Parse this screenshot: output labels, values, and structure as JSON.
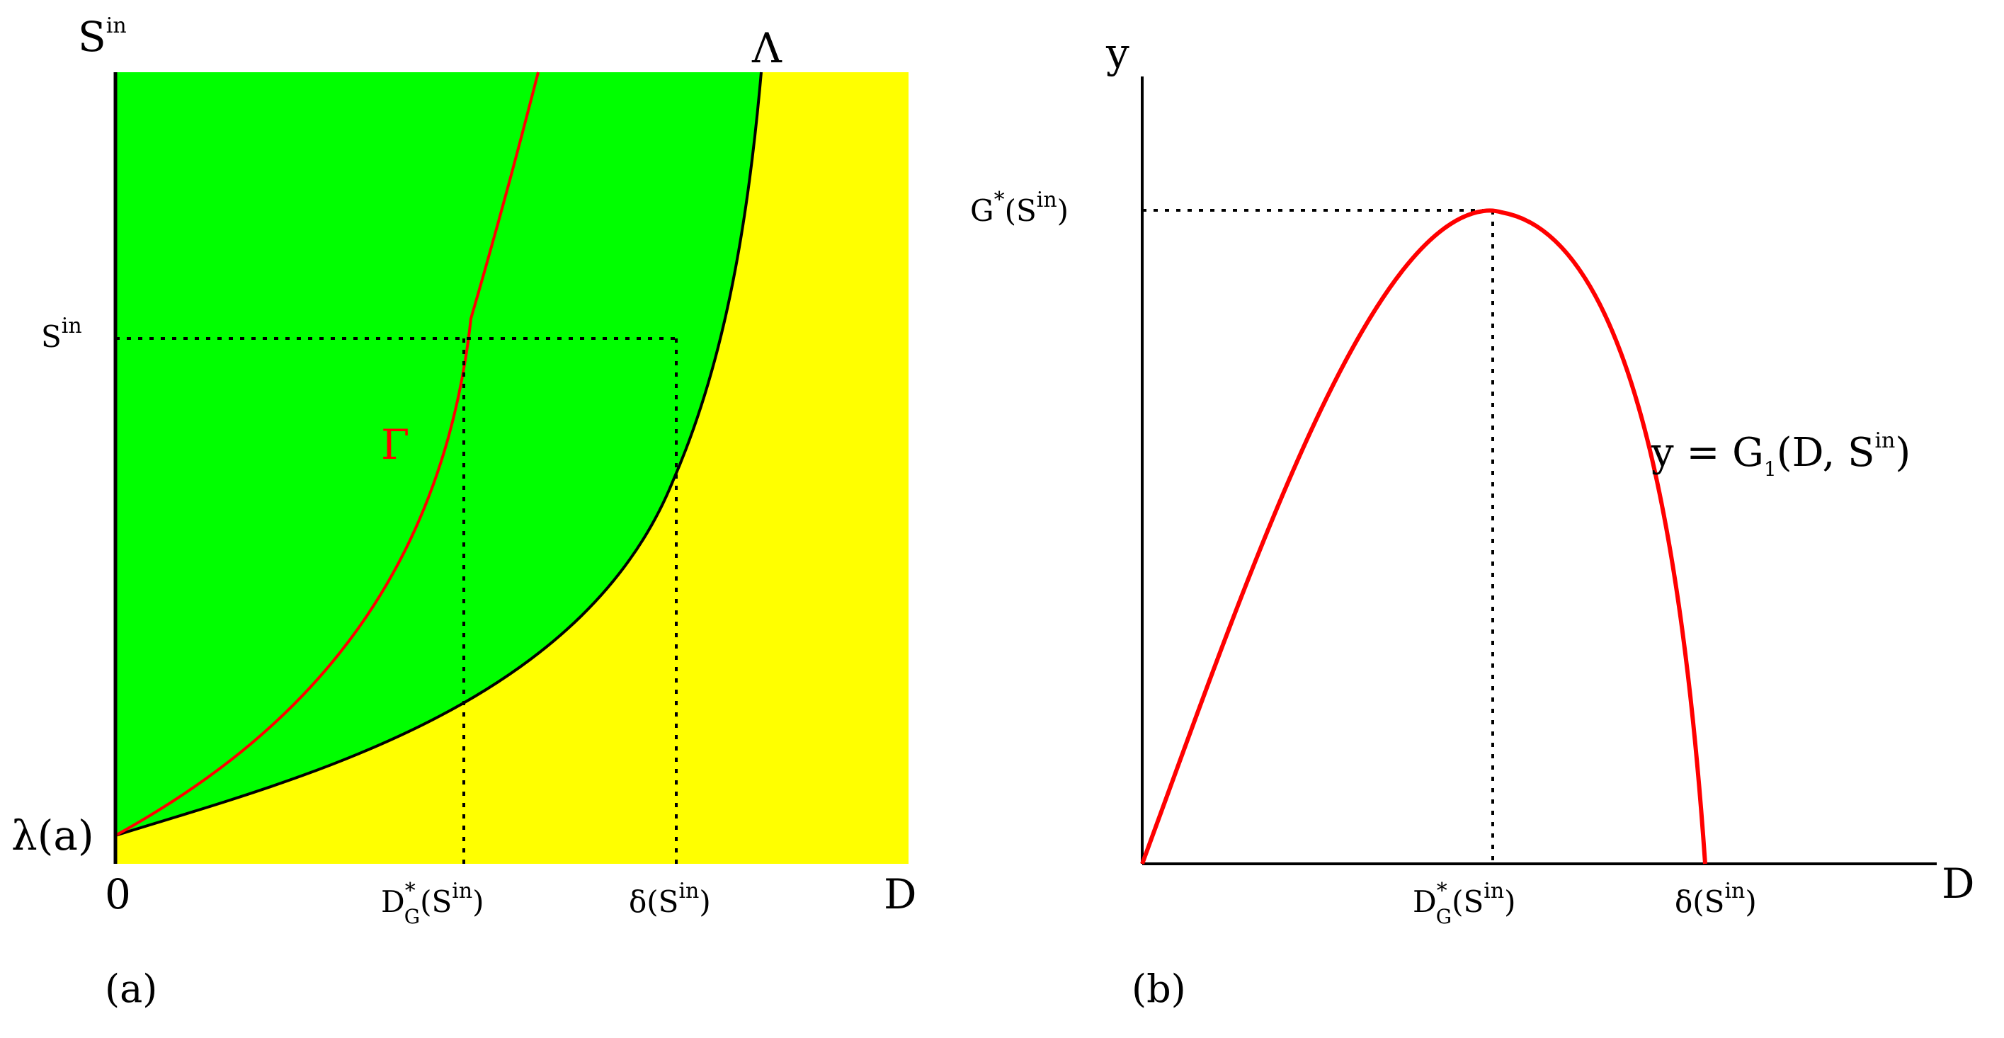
{
  "figure": {
    "colors": {
      "stable_region": "#00ff00",
      "washout_region": "#ffff00",
      "curve_red": "#ff0000",
      "curve_black": "#000000",
      "axis": "#000000"
    },
    "panel_a": {
      "caption": "(a)",
      "y_axis_label": "S",
      "y_axis_label_sup": "in",
      "x_axis_label": "D",
      "origin_label": "0",
      "intercept_label": "λ(a)",
      "lambda_curve_label": "Λ",
      "gamma_curve_label": "Γ",
      "sin_tick": "S",
      "sin_tick_sup": "in",
      "dg_tick": "D",
      "dg_tick_sup": "*",
      "dg_tick_sub": "G",
      "dg_tick_arg": "(S",
      "dg_tick_arg_sup": "in",
      "dg_tick_close": ")",
      "delta_tick": "δ(S",
      "delta_tick_sup": "in",
      "delta_tick_close": ")"
    },
    "panel_b": {
      "caption": "(b)",
      "y_axis_label": "y",
      "x_axis_label": "D",
      "max_tick": "G",
      "max_tick_sup": "*",
      "max_tick_arg": "(S",
      "max_tick_arg_sup": "in",
      "max_tick_close": ")",
      "curve_label_main": "y = G",
      "curve_label_sub": "1",
      "curve_label_args": "(D, S",
      "curve_label_sup": "in",
      "curve_label_close": ")",
      "dg_tick": "D",
      "dg_tick_sup": "*",
      "dg_tick_sub": "G",
      "dg_tick_arg": "(S",
      "dg_tick_arg_sup": "in",
      "dg_tick_close": ")",
      "delta_tick": "δ(S",
      "delta_tick_sup": "in",
      "delta_tick_close": ")"
    }
  }
}
